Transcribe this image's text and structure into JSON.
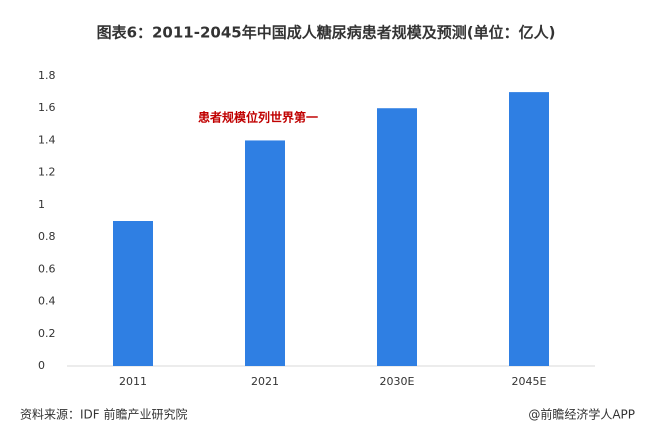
{
  "chart_data": {
    "type": "bar",
    "title": "图表6：2011-2045年中国成人糖尿病患者规模及预测(单位：亿人)",
    "categories": [
      "2011",
      "2021",
      "2030E",
      "2045E"
    ],
    "values": [
      0.9,
      1.4,
      1.6,
      1.7
    ],
    "color": "#2f7fe3",
    "ylim": [
      0,
      1.8
    ],
    "yticks": [
      0,
      0.2,
      0.4,
      0.6,
      0.8,
      1,
      1.2,
      1.4,
      1.6,
      1.8
    ],
    "grid": false,
    "annotation": "患者规模位列世界第一",
    "source": "资料来源：IDF 前瞻产业研究院",
    "credit": "@前瞻经济学人APP"
  }
}
